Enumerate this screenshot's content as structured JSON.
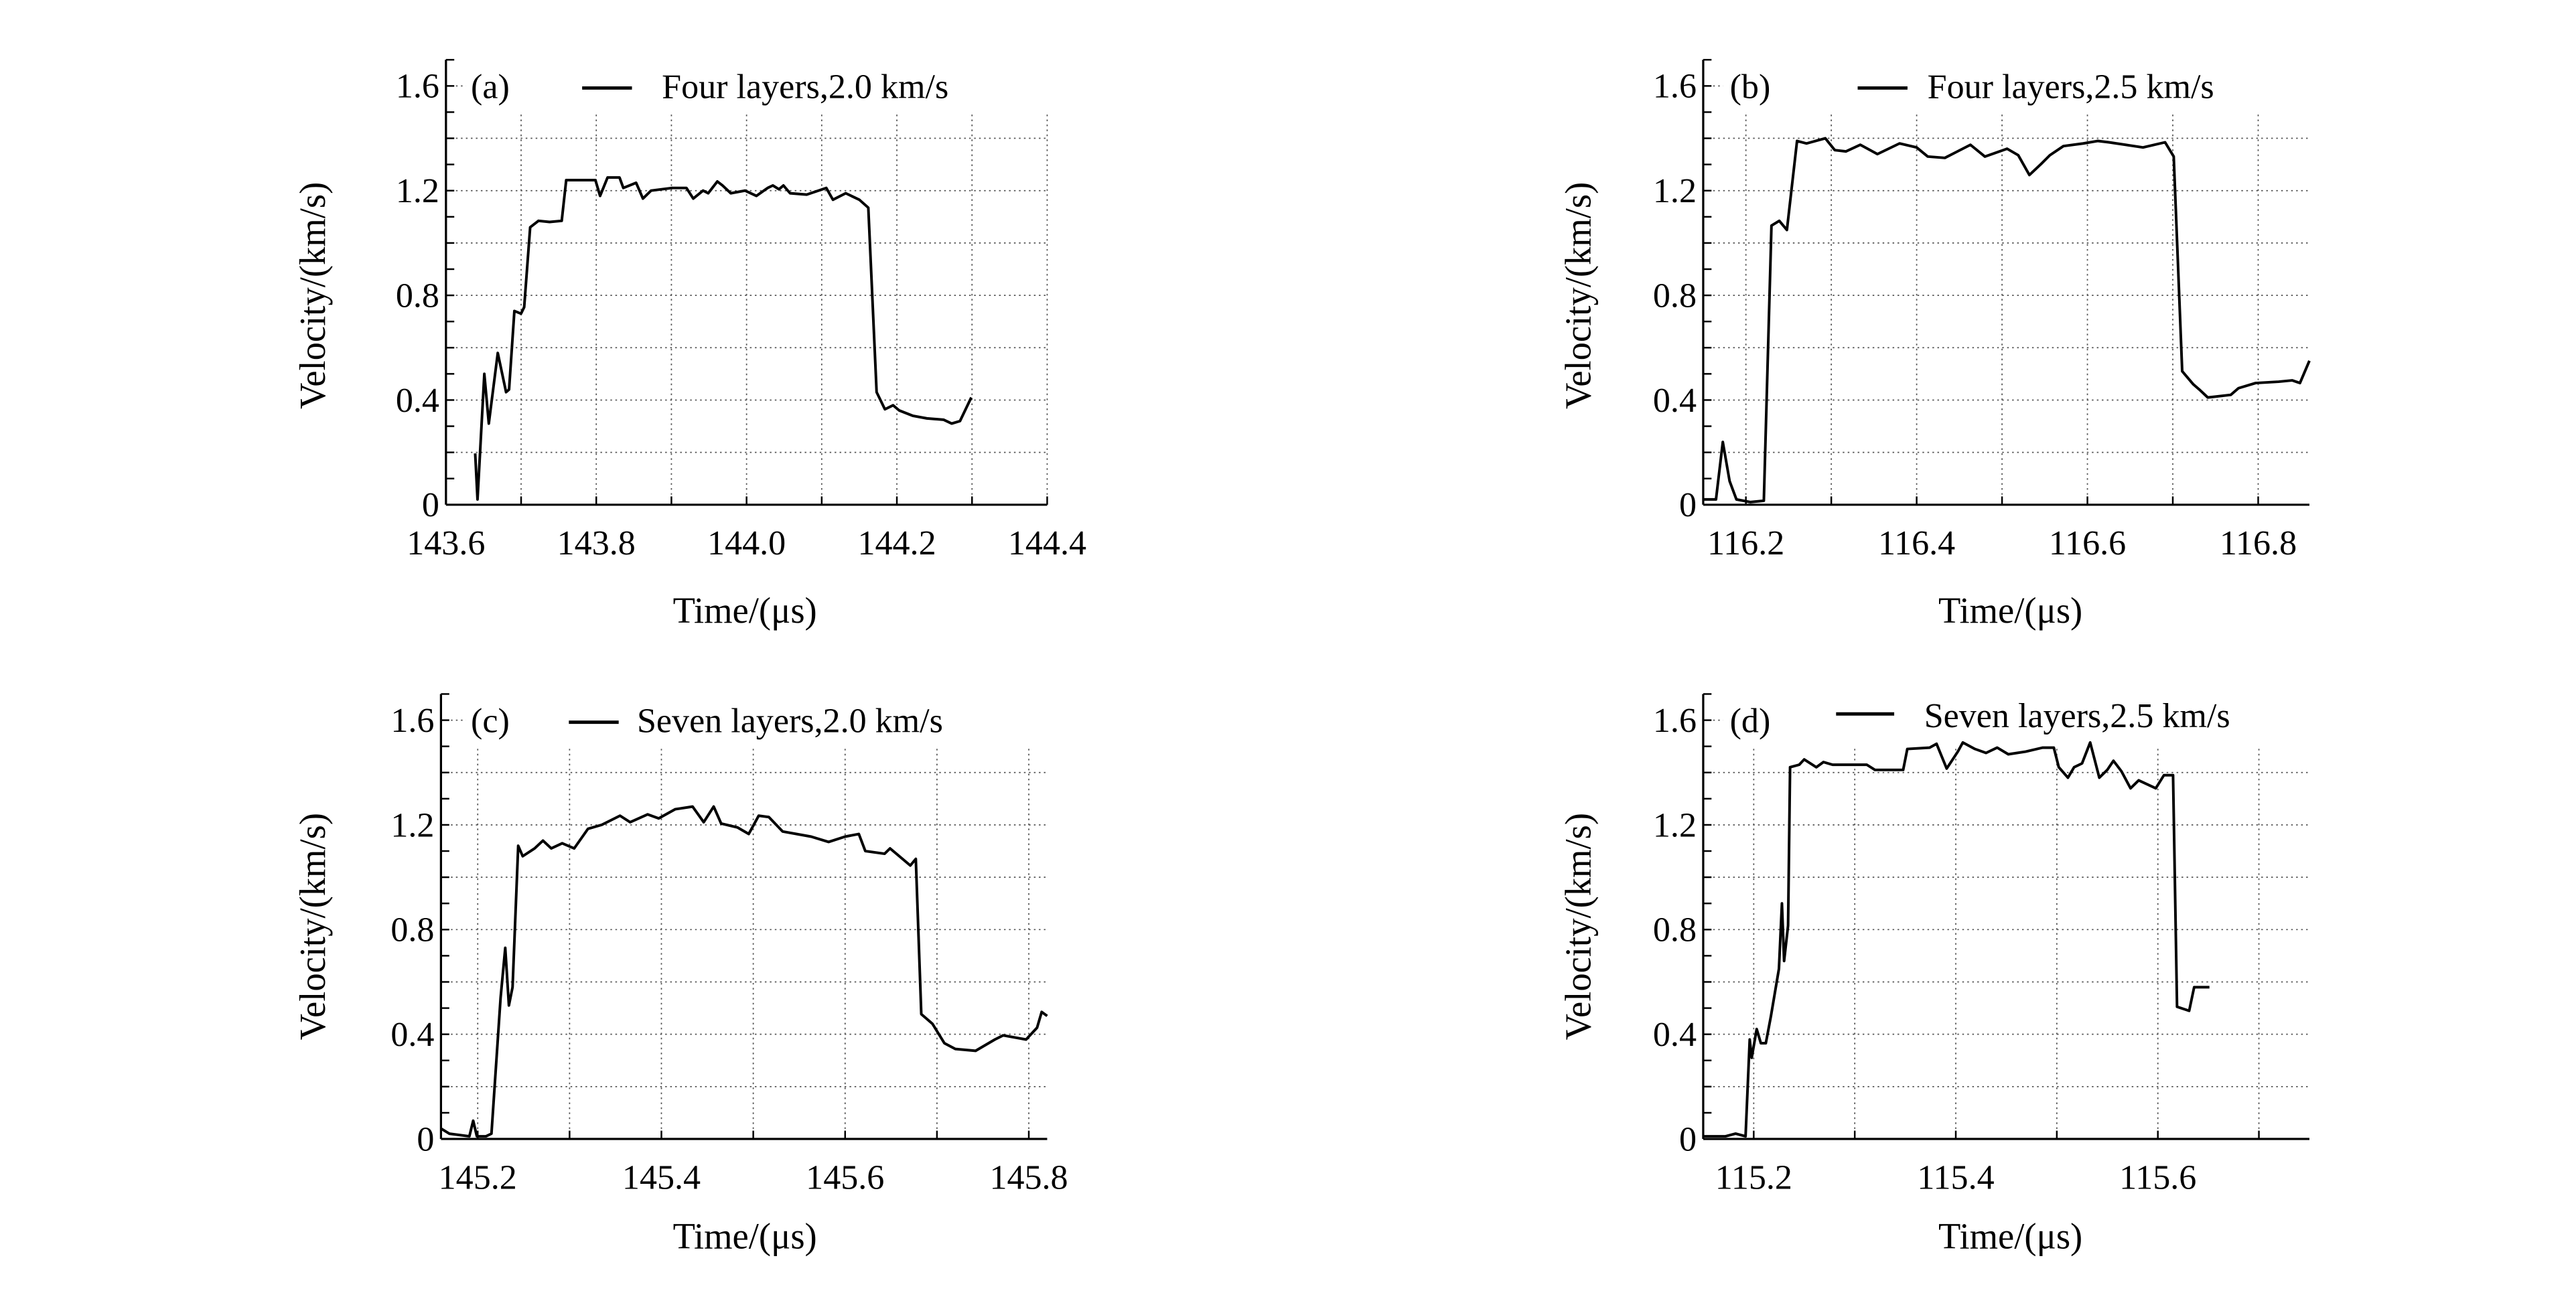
{
  "chart_data": [
    {
      "type": "line",
      "panel_label": "(a)",
      "legend": "Four layers,2.0 km/s",
      "xlabel": "Time/(μs)",
      "ylabel": "Velocity/(km/s)",
      "xlim": [
        143.6,
        144.4
      ],
      "ylim": [
        0,
        1.7
      ],
      "xticks": [
        "143.6",
        "143.8",
        "144.0",
        "144.2",
        "144.4"
      ],
      "yticks": [
        "0",
        "0.4",
        "0.8",
        "1.2",
        "1.6"
      ],
      "grid": true,
      "legend_position": "top-right",
      "x": [
        143.639,
        143.642,
        143.651,
        143.657,
        143.669,
        143.68,
        143.684,
        143.691,
        143.7,
        143.704,
        143.712,
        143.723,
        143.738,
        143.754,
        143.76,
        143.799,
        143.805,
        143.815,
        143.831,
        143.836,
        143.853,
        143.862,
        143.873,
        143.901,
        143.92,
        143.929,
        143.942,
        143.949,
        143.961,
        143.968,
        143.979,
        143.998,
        144.013,
        144.028,
        144.035,
        144.043,
        144.049,
        144.058,
        144.08,
        144.106,
        144.115,
        144.132,
        144.15,
        144.162,
        144.173,
        144.184,
        144.195,
        144.203,
        144.221,
        144.24,
        144.262,
        144.273,
        144.284,
        144.299
      ],
      "y": [
        0.196,
        0.02,
        0.5,
        0.31,
        0.58,
        0.43,
        0.44,
        0.74,
        0.73,
        0.755,
        1.06,
        1.085,
        1.08,
        1.085,
        1.24,
        1.24,
        1.18,
        1.25,
        1.25,
        1.21,
        1.23,
        1.17,
        1.2,
        1.21,
        1.21,
        1.17,
        1.2,
        1.19,
        1.235,
        1.22,
        1.19,
        1.2,
        1.18,
        1.21,
        1.22,
        1.205,
        1.22,
        1.19,
        1.185,
        1.21,
        1.165,
        1.19,
        1.165,
        1.135,
        0.43,
        0.365,
        0.38,
        0.36,
        0.34,
        0.33,
        0.325,
        0.31,
        0.32,
        0.41
      ]
    },
    {
      "type": "line",
      "panel_label": "(b)",
      "legend": "Four layers,2.5 km/s",
      "xlabel": "Time/(μs)",
      "ylabel": "Velocity/(km/s)",
      "xlim": [
        116.15,
        116.86
      ],
      "ylim": [
        0,
        1.7
      ],
      "xticks": [
        "116.2",
        "116.4",
        "116.6",
        "116.8"
      ],
      "yticks": [
        "0",
        "0.4",
        "0.8",
        "1.2",
        "1.6"
      ],
      "grid": true,
      "legend_position": "top-right",
      "x": [
        116.15,
        116.165,
        116.173,
        116.181,
        116.189,
        116.205,
        116.221,
        116.23,
        116.239,
        116.248,
        116.26,
        116.271,
        116.293,
        116.304,
        116.317,
        116.334,
        116.354,
        116.38,
        116.4,
        116.413,
        116.433,
        116.463,
        116.48,
        116.506,
        116.519,
        116.532,
        116.545,
        116.556,
        116.572,
        116.595,
        116.612,
        116.625,
        116.665,
        116.691,
        116.701,
        116.711,
        116.724,
        116.731,
        116.741,
        116.768,
        116.777,
        116.797,
        116.824,
        116.84,
        116.849,
        116.86
      ],
      "y": [
        0.02,
        0.02,
        0.24,
        0.09,
        0.02,
        0.01,
        0.015,
        1.066,
        1.085,
        1.05,
        1.39,
        1.38,
        1.4,
        1.355,
        1.35,
        1.375,
        1.34,
        1.38,
        1.365,
        1.33,
        1.325,
        1.375,
        1.33,
        1.36,
        1.335,
        1.26,
        1.3,
        1.335,
        1.37,
        1.38,
        1.39,
        1.385,
        1.365,
        1.385,
        1.33,
        0.51,
        0.46,
        0.44,
        0.41,
        0.42,
        0.445,
        0.465,
        0.47,
        0.475,
        0.465,
        0.55
      ]
    },
    {
      "type": "line",
      "panel_label": "(c)",
      "legend": "Seven layers,2.0 km/s",
      "xlabel": "Time/(μs)",
      "ylabel": "Velocity/(km/s)",
      "xlim": [
        145.16,
        145.82
      ],
      "ylim": [
        0,
        1.7
      ],
      "xticks": [
        "145.2",
        "145.4",
        "145.6",
        "145.8"
      ],
      "yticks": [
        "0",
        "0.4",
        "0.8",
        "1.2",
        "1.6"
      ],
      "grid": true,
      "legend_position": "top-right",
      "x": [
        145.16,
        145.169,
        145.191,
        145.195,
        145.199,
        145.209,
        145.215,
        145.225,
        145.23,
        145.234,
        145.238,
        145.244,
        145.249,
        145.262,
        145.271,
        145.28,
        145.292,
        145.305,
        145.32,
        145.335,
        145.355,
        145.366,
        145.385,
        145.397,
        145.415,
        145.434,
        145.446,
        145.457,
        145.465,
        145.483,
        145.495,
        145.506,
        145.517,
        145.532,
        145.563,
        145.582,
        145.6,
        145.615,
        145.622,
        145.643,
        145.649,
        145.671,
        145.677,
        145.683,
        145.695,
        145.708,
        145.72,
        145.742,
        145.763,
        145.772,
        145.797,
        145.809,
        145.814,
        145.82
      ],
      "y": [
        0.04,
        0.02,
        0.01,
        0.07,
        0.01,
        0.01,
        0.02,
        0.54,
        0.73,
        0.51,
        0.58,
        1.12,
        1.08,
        1.11,
        1.14,
        1.11,
        1.13,
        1.11,
        1.185,
        1.2,
        1.235,
        1.21,
        1.24,
        1.225,
        1.26,
        1.27,
        1.21,
        1.27,
        1.205,
        1.19,
        1.165,
        1.235,
        1.23,
        1.175,
        1.155,
        1.135,
        1.155,
        1.165,
        1.1,
        1.09,
        1.11,
        1.045,
        1.07,
        0.477,
        0.44,
        0.366,
        0.344,
        0.337,
        0.38,
        0.396,
        0.38,
        0.425,
        0.485,
        0.47
      ]
    },
    {
      "type": "line",
      "panel_label": "(d)",
      "legend": "Seven layers,2.5 km/s",
      "xlabel": "Time/(μs)",
      "ylabel": "Velocity/(km/s)",
      "xlim": [
        115.15,
        115.75
      ],
      "ylim": [
        0,
        1.7
      ],
      "xticks": [
        "115.2",
        "115.4",
        "115.6"
      ],
      "yticks": [
        "0",
        "0.4",
        "0.8",
        "1.2",
        "1.6"
      ],
      "grid": true,
      "legend_position": "top-right",
      "x": [
        115.151,
        115.172,
        115.182,
        115.192,
        115.196,
        115.198,
        115.203,
        115.207,
        115.212,
        115.217,
        115.225,
        115.228,
        115.23,
        115.234,
        115.236,
        115.245,
        115.25,
        115.262,
        115.269,
        115.278,
        115.312,
        115.32,
        115.348,
        115.352,
        115.374,
        115.381,
        115.391,
        115.402,
        115.407,
        115.419,
        115.43,
        115.441,
        115.452,
        115.469,
        115.486,
        115.497,
        115.502,
        115.511,
        115.517,
        115.525,
        115.533,
        115.542,
        115.55,
        115.556,
        115.564,
        115.573,
        115.581,
        115.598,
        115.606,
        115.615,
        115.619,
        115.631,
        115.636,
        115.651
      ],
      "y": [
        0.01,
        0.01,
        0.02,
        0.01,
        0.38,
        0.31,
        0.42,
        0.366,
        0.366,
        0.47,
        0.65,
        0.9,
        0.68,
        0.815,
        1.42,
        1.43,
        1.45,
        1.42,
        1.44,
        1.43,
        1.43,
        1.41,
        1.41,
        1.49,
        1.495,
        1.51,
        1.415,
        1.48,
        1.515,
        1.49,
        1.475,
        1.495,
        1.47,
        1.48,
        1.495,
        1.495,
        1.42,
        1.38,
        1.42,
        1.435,
        1.515,
        1.38,
        1.41,
        1.445,
        1.405,
        1.34,
        1.37,
        1.34,
        1.39,
        1.39,
        0.505,
        0.49,
        0.58,
        0.58
      ]
    }
  ]
}
